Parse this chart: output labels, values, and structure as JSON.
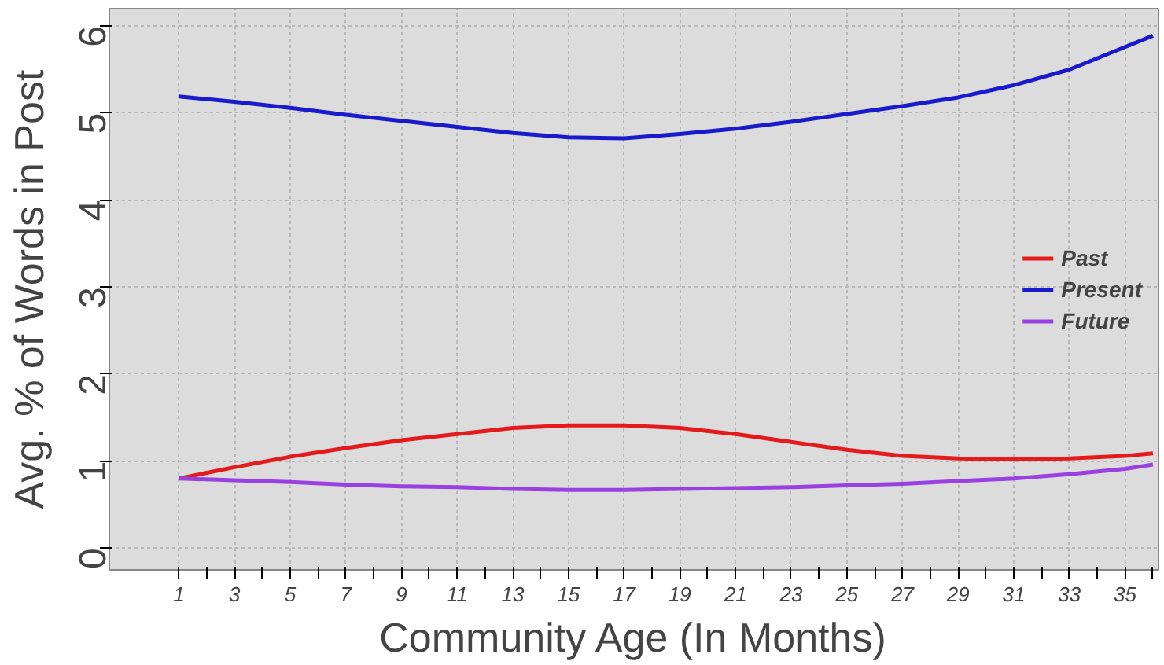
{
  "chart_data": {
    "type": "line",
    "xlabel": "Community Age (In Months)",
    "ylabel": "Avg. % of Words in Post",
    "x": [
      1,
      3,
      5,
      7,
      9,
      11,
      13,
      15,
      17,
      19,
      21,
      23,
      25,
      27,
      29,
      31,
      33,
      35,
      36
    ],
    "series": [
      {
        "name": "Past",
        "color": "#e41a1c",
        "values": [
          0.8,
          0.93,
          1.05,
          1.15,
          1.24,
          1.31,
          1.38,
          1.41,
          1.41,
          1.38,
          1.31,
          1.22,
          1.13,
          1.06,
          1.03,
          1.02,
          1.03,
          1.06,
          1.09
        ]
      },
      {
        "name": "Present",
        "color": "#1a1acc",
        "values": [
          5.19,
          5.13,
          5.06,
          4.98,
          4.91,
          4.84,
          4.77,
          4.72,
          4.71,
          4.76,
          4.82,
          4.9,
          4.99,
          5.08,
          5.18,
          5.32,
          5.5,
          5.76,
          5.89
        ]
      },
      {
        "name": "Future",
        "color": "#9b40e0",
        "values": [
          0.8,
          0.78,
          0.76,
          0.73,
          0.71,
          0.7,
          0.68,
          0.67,
          0.67,
          0.68,
          0.69,
          0.7,
          0.72,
          0.74,
          0.77,
          0.8,
          0.85,
          0.91,
          0.96
        ]
      }
    ],
    "xlim": [
      -1.5,
      36.2
    ],
    "ylim": [
      -0.25,
      6.2
    ],
    "xticks": [
      1,
      {
        "value": 2,
        "label": null
      },
      3,
      {
        "value": 4,
        "label": null
      },
      5,
      {
        "value": 6,
        "label": null
      },
      7,
      {
        "value": 8,
        "label": null
      },
      9,
      {
        "value": 10,
        "label": null
      },
      11,
      {
        "value": 12,
        "label": null
      },
      13,
      {
        "value": 14,
        "label": null
      },
      15,
      {
        "value": 16,
        "label": null
      },
      17,
      {
        "value": 18,
        "label": null
      },
      19,
      {
        "value": 20,
        "label": null
      },
      21,
      {
        "value": 22,
        "label": null
      },
      23,
      {
        "value": 24,
        "label": null
      },
      25,
      {
        "value": 26,
        "label": null
      },
      27,
      {
        "value": 28,
        "label": null
      },
      29,
      {
        "value": 30,
        "label": null
      },
      31,
      {
        "value": 32,
        "label": null
      },
      33,
      {
        "value": 34,
        "label": null
      },
      35,
      {
        "value": 36,
        "label": null
      }
    ],
    "yticks": [
      0,
      1,
      2,
      3,
      4,
      5,
      6
    ],
    "grid": true,
    "legend": "right",
    "marker": "none",
    "line_style": "solid"
  }
}
